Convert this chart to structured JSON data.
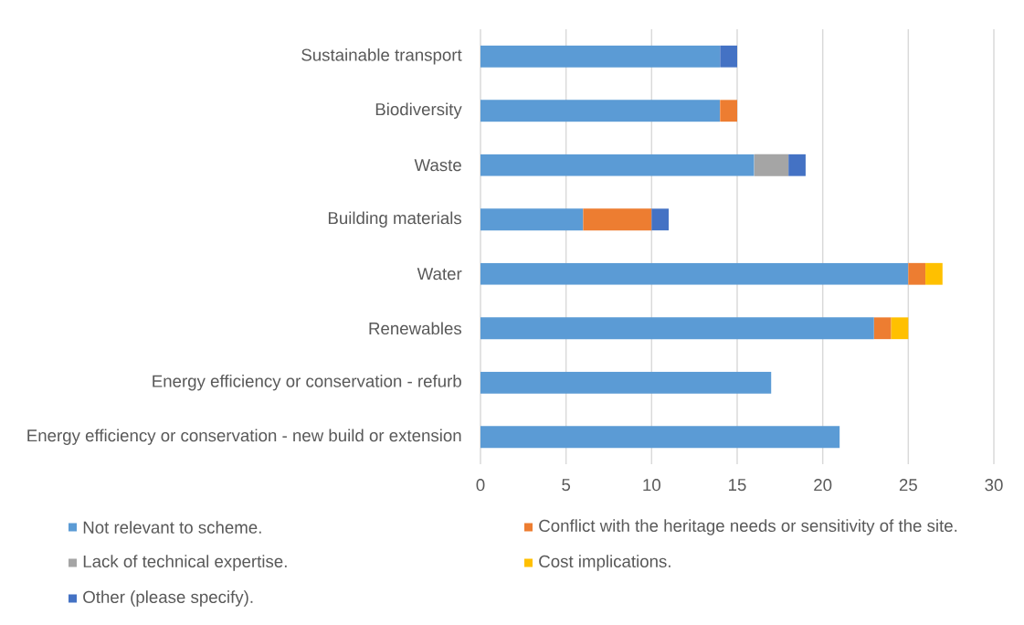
{
  "chart_data": {
    "type": "bar",
    "orientation": "horizontal",
    "stacked": true,
    "categories": [
      "Sustainable transport",
      "Biodiversity",
      "Waste",
      "Building materials",
      "Water",
      "Renewables",
      "Energy efficiency or conservation - refurb",
      "Energy efficiency or conservation - new build or extension"
    ],
    "series": [
      {
        "name": "Not relevant to scheme.",
        "color": "#5b9bd5",
        "values": [
          14,
          14,
          16,
          6,
          25,
          23,
          17,
          21
        ]
      },
      {
        "name": "Conflict with the heritage needs or sensitivity of the site.",
        "color": "#ed7d31",
        "values": [
          null,
          1,
          null,
          4,
          1,
          1,
          null,
          null
        ]
      },
      {
        "name": "Lack of technical expertise.",
        "color": "#a5a5a5",
        "values": [
          null,
          null,
          2,
          null,
          null,
          null,
          null,
          null
        ]
      },
      {
        "name": "Cost implications.",
        "color": "#ffc000",
        "values": [
          null,
          null,
          null,
          null,
          1,
          1,
          null,
          null
        ]
      },
      {
        "name": "Other (please specify).",
        "color": "#4472c4",
        "values": [
          1,
          null,
          1,
          1,
          null,
          null,
          null,
          null
        ]
      }
    ],
    "xlim": [
      0,
      30
    ],
    "xticks": [
      0,
      5,
      10,
      15,
      20,
      25,
      30
    ],
    "grid": "x",
    "legend": "bottom"
  }
}
